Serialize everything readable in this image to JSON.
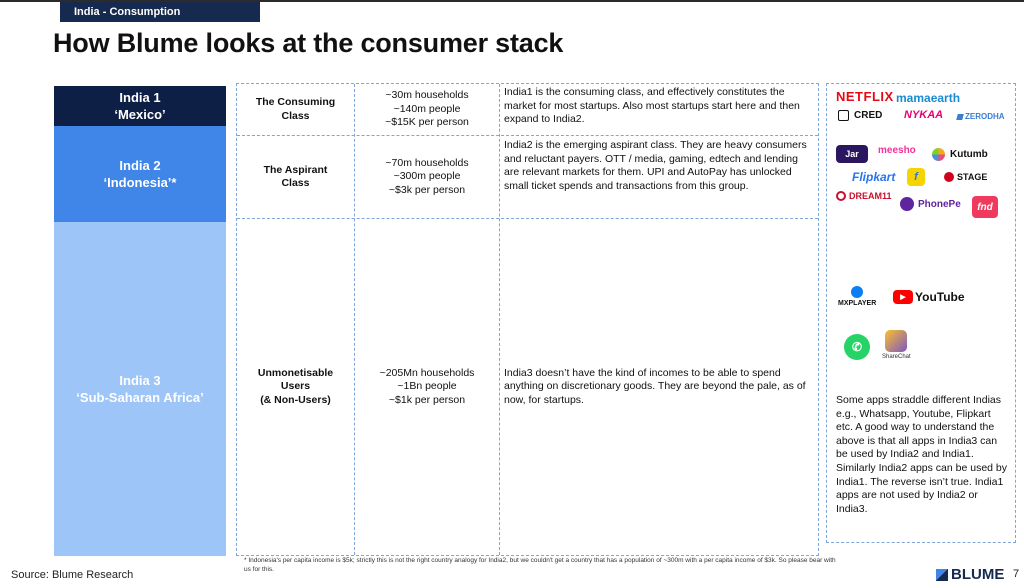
{
  "header": {
    "section_tag": "India - Consumption",
    "title": "How Blume looks at the consumer stack"
  },
  "segments": [
    {
      "name": "India 1",
      "analog": "‘Mexico’",
      "color": "#0d1f45",
      "class_name": [
        "The Consuming",
        "Class"
      ],
      "stats": [
        "~30m households",
        "~140m people",
        "~$15K per person"
      ],
      "description": "India1 is the consuming class, and effectively constitutes the market for most startups. Also most startups start here and then expand to India2."
    },
    {
      "name": "India 2",
      "analog": "‘Indonesia’*",
      "color": "#3f86e8",
      "class_name": [
        "The Aspirant",
        "Class"
      ],
      "stats": [
        "~70m households",
        "~300m people",
        "~$3k per person"
      ],
      "description": "India2 is the emerging aspirant class. They are heavy consumers and reluctant payers. OTT / media, gaming, edtech and lending are relevant markets for them. UPI and AutoPay has unlocked small ticket spends and transactions from this group."
    },
    {
      "name": "India 3",
      "analog": "‘Sub-Saharan Africa’",
      "color": "#9ec5f7",
      "class_name": [
        "Unmonetisable",
        "Users",
        "(& Non-Users)"
      ],
      "stats": [
        "~205Mn households",
        "~1Bn people",
        "~$1k per person"
      ],
      "description": "India3 doesn’t have the kind of incomes to be able to spend anything on discretionary goods. They are beyond the pale, as of now, for startups."
    }
  ],
  "logos": {
    "netflix": "NETFLIX",
    "mamaearth": "mamaearth",
    "cred": "CRED",
    "nykaa": "NYKAA",
    "zerodha": "ZERODHA",
    "jar": "Jar",
    "meesho": "meesho",
    "kutumb": "Kutumb",
    "flipkart": "Flipkart",
    "stage": "STAGE",
    "dream11": "DREAM11",
    "phonepe": "PhonePe",
    "fnd": "fnd",
    "mxplayer": "MXPLAYER",
    "youtube": "YouTube",
    "sharechat": "ShareChat"
  },
  "side_note": "Some apps straddle different Indias e.g., Whatsapp, Youtube, Flipkart etc. A good way to understand the above is that all apps in India3 can be used by India2 and India1. Similarly India2 apps can be used by India1. The reverse isn’t true. India1 apps are not used by India2 or India3.",
  "footnote": "* Indonesia's per capita income is $5k; strictly this is not the right country analogy for India2, but we couldn't get a country that has a population of ~300m with a per capita income of $3k. So please bear with us for this.",
  "source": "Source: Blume Research",
  "brand": "BLUME",
  "page_number": "7"
}
